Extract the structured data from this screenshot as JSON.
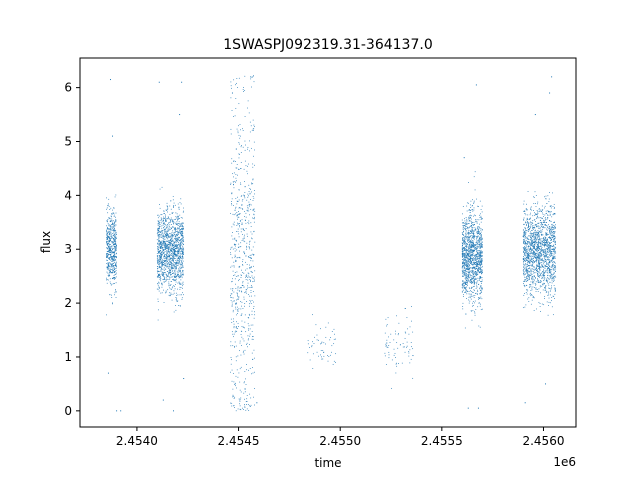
{
  "chart_data": {
    "type": "scatter",
    "title": "1SWASPJ092319.31-364137.0",
    "xlabel": "time",
    "ylabel": "flux",
    "x_offset_label": "1e6",
    "xlim": [
      2.45372,
      2.45616
    ],
    "ylim": [
      -0.3,
      6.55
    ],
    "x_ticks": [
      2.454,
      2.4545,
      2.455,
      2.4555,
      2.456
    ],
    "x_tick_labels": [
      "2.4540",
      "2.4545",
      "2.4550",
      "2.4555",
      "2.4560"
    ],
    "y_ticks": [
      0,
      1,
      2,
      3,
      4,
      5,
      6
    ],
    "y_tick_labels": [
      "0",
      "1",
      "2",
      "3",
      "4",
      "5",
      "6"
    ],
    "grid": false,
    "marker_color": "#1f77b4",
    "series": [
      {
        "clusters": [
          {
            "x_start": 2.45385,
            "x_end": 2.4539,
            "y_center": 3.0,
            "y_spread": 0.35,
            "count": 550
          },
          {
            "x_start": 2.4541,
            "x_end": 2.45423,
            "y_center": 2.95,
            "y_spread": 0.38,
            "count": 1400
          },
          {
            "x_start": 2.45446,
            "x_end": 2.45458,
            "y_center": 2.8,
            "y_spread": 1.6,
            "count": 700
          },
          {
            "x_start": 2.45484,
            "x_end": 2.45498,
            "y_center": 1.25,
            "y_spread": 0.22,
            "count": 55
          },
          {
            "x_start": 2.45522,
            "x_end": 2.45536,
            "y_center": 1.2,
            "y_spread": 0.28,
            "count": 75
          },
          {
            "x_start": 2.4556,
            "x_end": 2.4557,
            "y_center": 2.85,
            "y_spread": 0.42,
            "count": 1300
          },
          {
            "x_start": 2.4559,
            "x_end": 2.45606,
            "y_center": 2.95,
            "y_spread": 0.4,
            "count": 1600
          }
        ],
        "outliers": [
          {
            "x": 2.45387,
            "y": 6.15
          },
          {
            "x": 2.45388,
            "y": 5.1
          },
          {
            "x": 2.4539,
            "y": 0.0
          },
          {
            "x": 2.45392,
            "y": 0.0
          },
          {
            "x": 2.45386,
            "y": 0.7
          },
          {
            "x": 2.45411,
            "y": 6.1
          },
          {
            "x": 2.45422,
            "y": 6.1
          },
          {
            "x": 2.45413,
            "y": 0.2
          },
          {
            "x": 2.45418,
            "y": 0.0
          },
          {
            "x": 2.45421,
            "y": 5.5
          },
          {
            "x": 2.45423,
            "y": 0.6
          },
          {
            "x": 2.45456,
            "y": 6.2
          },
          {
            "x": 2.45447,
            "y": 5.9
          },
          {
            "x": 2.45459,
            "y": 0.15
          },
          {
            "x": 2.45567,
            "y": 6.05
          },
          {
            "x": 2.45563,
            "y": 0.05
          },
          {
            "x": 2.45568,
            "y": 0.05
          },
          {
            "x": 2.45561,
            "y": 4.7
          },
          {
            "x": 2.45604,
            "y": 6.2
          },
          {
            "x": 2.45603,
            "y": 5.9
          },
          {
            "x": 2.45591,
            "y": 0.15
          },
          {
            "x": 2.45596,
            "y": 5.5
          },
          {
            "x": 2.45601,
            "y": 0.5
          },
          {
            "x": 2.45532,
            "y": 1.9
          }
        ]
      }
    ]
  }
}
